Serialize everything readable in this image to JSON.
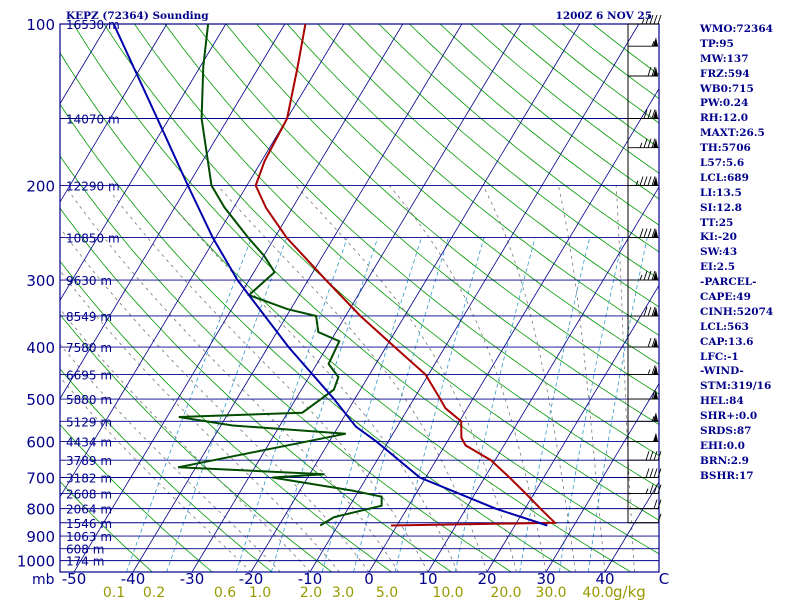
{
  "header": {
    "station": "KEPZ (72364) Sounding",
    "time": "1200Z  6 NOV 25"
  },
  "side_indices": [
    "WMO:72364",
    "TP:95",
    "MW:137",
    "FRZ:594",
    "WB0:715",
    "PW:0.24",
    "RH:12.0",
    "MAXT:26.5",
    "TH:5706",
    "L57:5.6",
    "LCL:689",
    "LI:13.5",
    "SI:12.8",
    "TT:25",
    "KI:-20",
    "SW:43",
    "EI:2.5",
    "-PARCEL-",
    "CAPE:49",
    "CINH:52074",
    "LCL:563",
    "CAP:13.6",
    "LFC:-1",
    "-WIND-",
    "STM:319/16",
    "HEL:84",
    "SHR+:0.0",
    "SRDS:87",
    "EHI:0.0",
    "BRN:2.9",
    "BSHR:17"
  ],
  "colors": {
    "axes": "#00008b",
    "isobar": "#00008b",
    "isotherm": "#00008b",
    "dry_adiabat": "#009900",
    "moist_adiabat": "#777777",
    "mixing_ratio": "#3399cc",
    "temperature": "#aa0000",
    "dewpoint": "#004d00",
    "parcel": "#0000aa",
    "wind": "#000000",
    "mixing_label": "#999900"
  },
  "chart_data": {
    "type": "line",
    "title": "KEPZ (72364) Sounding",
    "subtitle": "1200Z  6 NOV 25",
    "x_unit_label": "C",
    "y_unit_label": "mb",
    "xlim": [
      -50,
      50
    ],
    "ylim": [
      1050,
      100
    ],
    "log_pressure": true,
    "skew": "skew-T",
    "pressure_ticks": [
      100,
      200,
      300,
      400,
      500,
      600,
      700,
      800,
      900,
      1000
    ],
    "temp_ticks": [
      -50,
      -40,
      -30,
      -20,
      -10,
      0,
      10,
      20,
      30,
      40,
      50
    ],
    "temp_tick_labels": [
      "-50",
      "-40",
      "-30",
      "-20",
      "-10",
      "0",
      "10",
      "20",
      "30",
      "40",
      "C"
    ],
    "height_labels": [
      {
        "p": 100,
        "label": "16530 m"
      },
      {
        "p": 150,
        "label": "14070 m"
      },
      {
        "p": 200,
        "label": "12290 m"
      },
      {
        "p": 250,
        "label": "10850 m"
      },
      {
        "p": 300,
        "label": "9630 m"
      },
      {
        "p": 350,
        "label": "8549 m"
      },
      {
        "p": 400,
        "label": "7580 m"
      },
      {
        "p": 450,
        "label": "6695 m"
      },
      {
        "p": 500,
        "label": "5880 m"
      },
      {
        "p": 550,
        "label": "5129 m"
      },
      {
        "p": 600,
        "label": "4434 m"
      },
      {
        "p": 650,
        "label": "3789 m"
      },
      {
        "p": 700,
        "label": "3182 m"
      },
      {
        "p": 750,
        "label": "2608 m"
      },
      {
        "p": 800,
        "label": "2064 m"
      },
      {
        "p": 850,
        "label": "1546 m"
      },
      {
        "p": 900,
        "label": "1063 m"
      },
      {
        "p": 950,
        "label": "608 m"
      },
      {
        "p": 1000,
        "label": "174 m"
      }
    ],
    "mixing_ratio_values": [
      0.1,
      0.2,
      0.6,
      1.0,
      2.0,
      3.0,
      5.0,
      10.0,
      20.0,
      30.0,
      40.0
    ],
    "mixing_ratio_labels": [
      "0.1",
      "0.2",
      "0.6",
      "1.0",
      "2.0",
      "3.0",
      "5.0",
      "10.0",
      "20.0",
      "30.0",
      "40.0"
    ],
    "mixing_unit": "g/kg",
    "series": [
      {
        "key": "temperature",
        "points": [
          [
            860,
            -1.0
          ],
          [
            850,
            26.5
          ],
          [
            800,
            22.6
          ],
          [
            750,
            18.6
          ],
          [
            700,
            14.2
          ],
          [
            650,
            9.3
          ],
          [
            610,
            3.5
          ],
          [
            590,
            2.0
          ],
          [
            550,
            0.3
          ],
          [
            520,
            -3.7
          ],
          [
            500,
            -5.5
          ],
          [
            450,
            -10.5
          ],
          [
            400,
            -18.5
          ],
          [
            350,
            -27.5
          ],
          [
            300,
            -37.0
          ],
          [
            250,
            -48.0
          ],
          [
            220,
            -54.5
          ],
          [
            200,
            -58.5
          ],
          [
            180,
            -59.5
          ],
          [
            150,
            -60.0
          ],
          [
            120,
            -63.5
          ],
          [
            100,
            -66.5
          ]
        ]
      },
      {
        "key": "dewpoint",
        "points": [
          [
            860,
            -13.0
          ],
          [
            830,
            -11.5
          ],
          [
            790,
            -4.6
          ],
          [
            760,
            -5.5
          ],
          [
            740,
            -11.2
          ],
          [
            700,
            -26.0
          ],
          [
            690,
            -17.5
          ],
          [
            670,
            -43.0
          ],
          [
            580,
            -18.0
          ],
          [
            560,
            -38.0
          ],
          [
            540,
            -48.0
          ],
          [
            530,
            -27.5
          ],
          [
            480,
            -24.5
          ],
          [
            455,
            -25.0
          ],
          [
            430,
            -28.0
          ],
          [
            390,
            -28.5
          ],
          [
            375,
            -33.0
          ],
          [
            350,
            -35.0
          ],
          [
            340,
            -40.5
          ],
          [
            320,
            -48.5
          ],
          [
            290,
            -46.5
          ],
          [
            270,
            -50.0
          ],
          [
            250,
            -54.5
          ],
          [
            220,
            -61.5
          ],
          [
            200,
            -66.0
          ],
          [
            150,
            -74.5
          ],
          [
            120,
            -79.5
          ],
          [
            100,
            -83.0
          ]
        ]
      },
      {
        "key": "parcel",
        "points": [
          [
            860,
            25.5
          ],
          [
            800,
            15.0
          ],
          [
            700,
            -1.0
          ],
          [
            600,
            -12.0
          ],
          [
            563,
            -17.0
          ],
          [
            500,
            -23.5
          ],
          [
            400,
            -36.5
          ],
          [
            300,
            -52.0
          ],
          [
            250,
            -60.5
          ],
          [
            200,
            -70.0
          ],
          [
            150,
            -82.0
          ],
          [
            100,
            -99.0
          ]
        ]
      }
    ],
    "wind_profile": [
      [
        850,
        10,
        200
      ],
      [
        800,
        20,
        220
      ],
      [
        750,
        35,
        250
      ],
      [
        700,
        40,
        260
      ],
      [
        650,
        40,
        270
      ],
      [
        600,
        50,
        270
      ],
      [
        550,
        55,
        270
      ],
      [
        500,
        60,
        265
      ],
      [
        450,
        65,
        260
      ],
      [
        400,
        70,
        260
      ],
      [
        350,
        80,
        255
      ],
      [
        300,
        85,
        255
      ],
      [
        250,
        90,
        255
      ],
      [
        200,
        95,
        255
      ],
      [
        170,
        85,
        260
      ],
      [
        150,
        80,
        260
      ],
      [
        125,
        70,
        265
      ],
      [
        110,
        55,
        265
      ],
      [
        100,
        45,
        270
      ]
    ]
  }
}
